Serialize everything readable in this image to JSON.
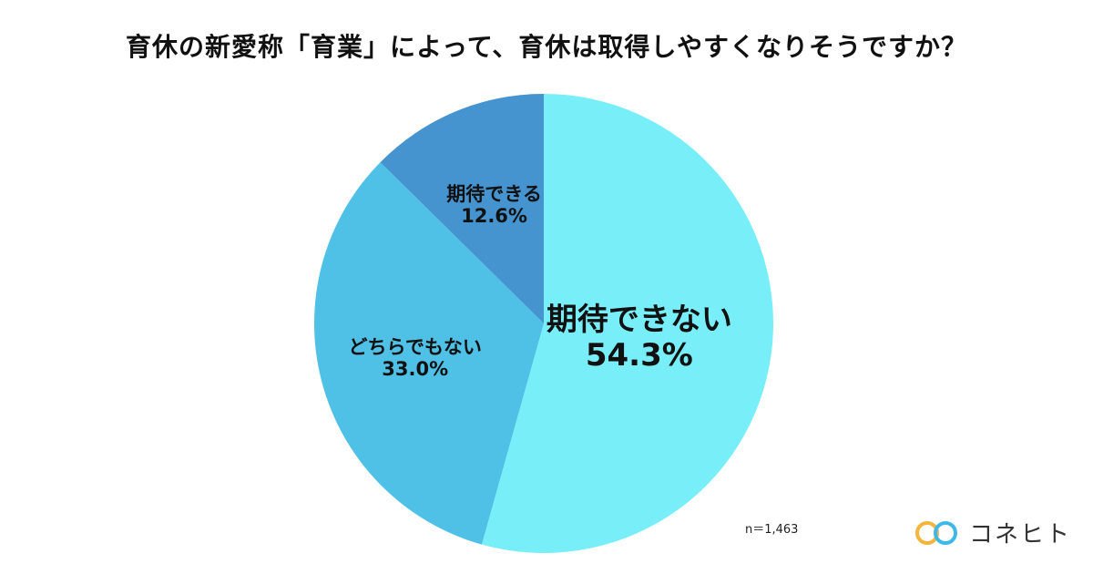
{
  "chart_data": {
    "type": "pie",
    "title": "育休の新愛称「育業」によって、育休は取得しやすくなりそうですか？",
    "slices": [
      {
        "label": "期待できない",
        "value": 54.3,
        "value_label": "54.3%",
        "color": "#78EEF8"
      },
      {
        "label": "どちらでもない",
        "value": 33.0,
        "value_label": "33.0%",
        "color": "#4FC0E6"
      },
      {
        "label": "期待できる",
        "value": 12.6,
        "value_label": "12.6%",
        "color": "#4593CF"
      }
    ],
    "start": "12 o'clock",
    "direction": "clockwise",
    "legend": "none"
  },
  "note": "n＝1,463",
  "brand": {
    "name": "コネヒト",
    "colors": [
      "#F5B43C",
      "#3DB8E8"
    ]
  }
}
